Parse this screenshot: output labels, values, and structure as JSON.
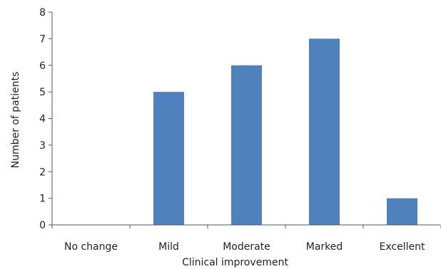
{
  "chart_data": {
    "type": "bar",
    "categories": [
      "No change",
      "Mild",
      "Moderate",
      "Marked",
      "Excellent"
    ],
    "values": [
      0,
      5,
      6,
      7,
      1
    ],
    "xlabel": "Clinical improvement",
    "ylabel": "Number of patients",
    "ylim": [
      0,
      8
    ],
    "yticks": [
      0,
      1,
      2,
      3,
      4,
      5,
      6,
      7,
      8
    ],
    "grid": false,
    "legend": "none",
    "bar_color": "#4f81bd"
  }
}
